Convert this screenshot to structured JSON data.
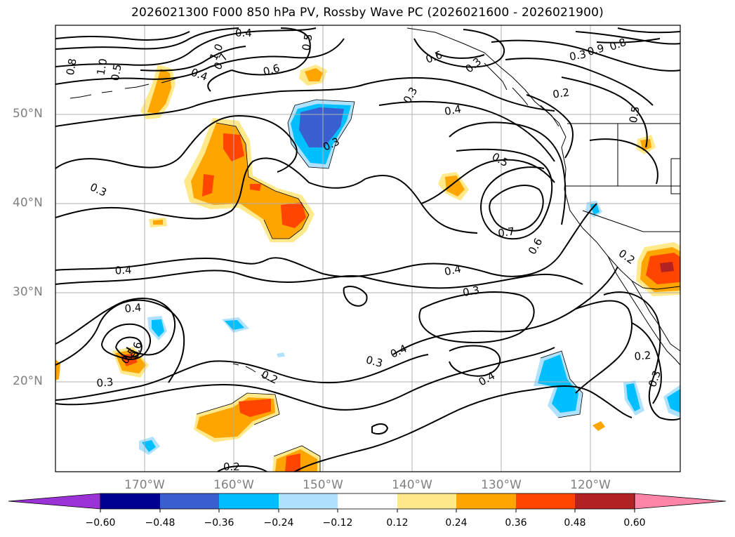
{
  "title": "2026021300 F000 850 hPa PV, Rossby Wave PC (2026021600 - 2026021900)",
  "map": {
    "lat_labels": [
      "50°N",
      "40°N",
      "30°N",
      "20°N"
    ],
    "lon_labels": [
      "170°W",
      "160°W",
      "150°W",
      "140°W",
      "130°W",
      "120°W"
    ],
    "contour_labels": [
      "0.8",
      "0.5",
      "1.0",
      "0.4",
      "0.7",
      "1.0",
      "0.6",
      "0.4",
      "0.5",
      "0.6",
      "0.3",
      "0.8",
      "0.3",
      "0.9",
      "0.3",
      "0.2",
      "0.4",
      "0.5",
      "0.3",
      "0.5",
      "0.3",
      "0.7",
      "0.6",
      "0.4",
      "0.4",
      "0.3",
      "0.2",
      "0.4",
      "0.5",
      "0.6",
      "0.4",
      "0.3",
      "0.2",
      "0.4",
      "0.3",
      "0.2",
      "0.3",
      "0.2"
    ]
  },
  "colorbar": {
    "colors": [
      "#9b32d6",
      "#000090",
      "#3a5fd0",
      "#00bfff",
      "#b0e2ff",
      "#ffffff",
      "#ffe98a",
      "#ffa500",
      "#ff4500",
      "#b22222",
      "#ff85a8"
    ],
    "ticks": [
      "−0.60",
      "−0.48",
      "−0.36",
      "−0.24",
      "−0.12",
      "0.12",
      "0.24",
      "0.36",
      "0.48",
      "0.60"
    ]
  }
}
